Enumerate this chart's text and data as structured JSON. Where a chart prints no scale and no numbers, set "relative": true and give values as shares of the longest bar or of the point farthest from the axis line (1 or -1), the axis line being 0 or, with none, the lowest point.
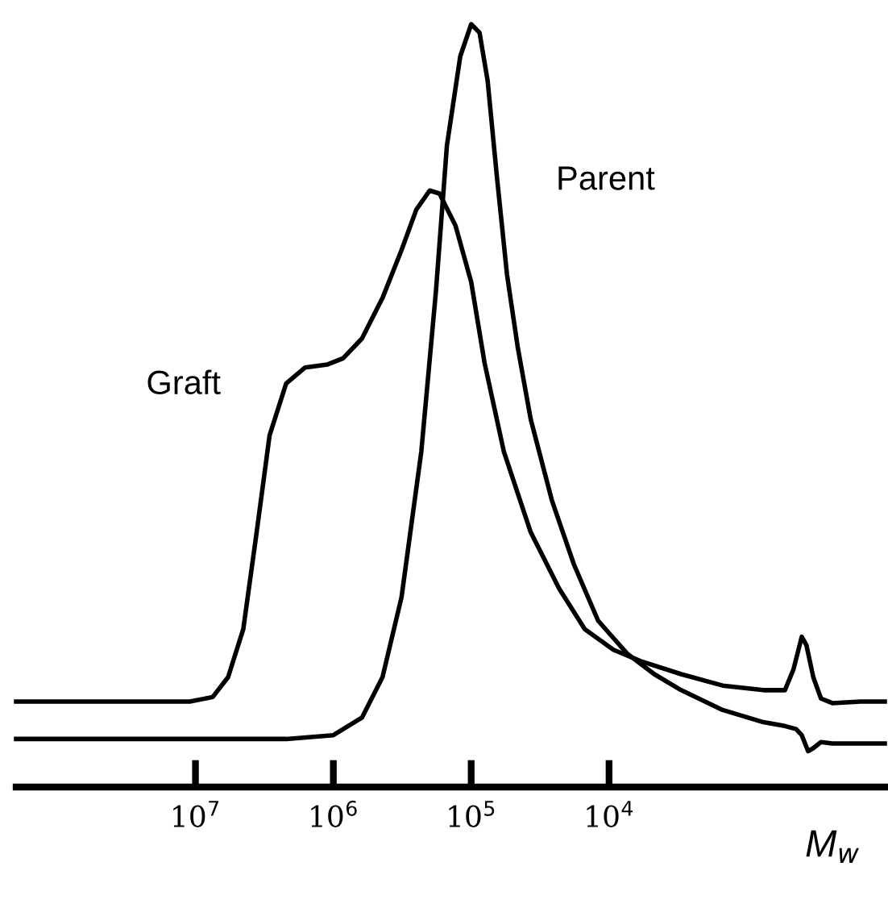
{
  "chart_data": {
    "type": "line",
    "relative": true,
    "log": "x",
    "xlabel": "M$_{w}$",
    "tick_labels": "x",
    "xlim": [
      200000000,
      100
    ],
    "xticks": [
      {
        "value": 10000000,
        "label": "10$^{7}$"
      },
      {
        "value": 1000000,
        "label": "10$^{6}$"
      },
      {
        "value": 100000,
        "label": "10$^{5}$"
      },
      {
        "value": 10000,
        "label": "10$^{4}$"
      }
    ],
    "series": [
      {
        "name": "Graft",
        "color": "#000000",
        "x": [
          200000000,
          11000000,
          7500000,
          5800000,
          4500000,
          3600000,
          2900000,
          2200000,
          1600000,
          1100000,
          850000,
          620000,
          440000,
          320000,
          250000,
          200000,
          170000,
          130000,
          100000,
          80000,
          58000,
          37000,
          23000,
          15000,
          9300,
          5900,
          3000,
          1500,
          760,
          530,
          460,
          400,
          370,
          330,
          290,
          240,
          150,
          100
        ],
        "values": [
          0.112,
          0.112,
          0.118,
          0.144,
          0.207,
          0.334,
          0.461,
          0.529,
          0.55,
          0.554,
          0.562,
          0.588,
          0.641,
          0.704,
          0.757,
          0.782,
          0.778,
          0.736,
          0.662,
          0.556,
          0.44,
          0.334,
          0.26,
          0.207,
          0.18,
          0.165,
          0.148,
          0.133,
          0.127,
          0.127,
          0.154,
          0.197,
          0.186,
          0.144,
          0.116,
          0.11,
          0.112,
          0.112
        ]
      },
      {
        "name": "Parent",
        "color": "#000000",
        "x": [
          200000000,
          2200000,
          1000000,
          620000,
          440000,
          320000,
          230000,
          180000,
          150000,
          120000,
          100000,
          87000,
          76000,
          65000,
          55000,
          46000,
          37000,
          26000,
          18000,
          12000,
          7400,
          4700,
          3000,
          1500,
          760,
          530,
          440,
          400,
          360,
          330,
          290,
          240,
          100
        ],
        "values": [
          0.063,
          0.063,
          0.068,
          0.091,
          0.144,
          0.249,
          0.44,
          0.651,
          0.841,
          0.958,
          1,
          0.989,
          0.926,
          0.799,
          0.672,
          0.577,
          0.482,
          0.376,
          0.292,
          0.218,
          0.175,
          0.148,
          0.127,
          0.101,
          0.085,
          0.08,
          0.076,
          0.068,
          0.047,
          0.051,
          0.059,
          0.057,
          0.057
        ]
      }
    ]
  }
}
